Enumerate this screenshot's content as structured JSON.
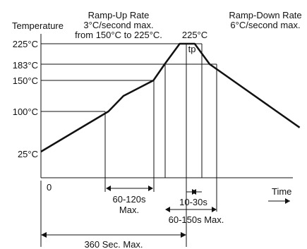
{
  "chart_data": {
    "type": "line",
    "title": "",
    "ylabel": "Temperature",
    "xlabel": "Time",
    "x_origin_label": "0",
    "y_ticks": [
      {
        "value": 25,
        "label": "25°C"
      },
      {
        "value": 100,
        "label": "100°C"
      },
      {
        "value": 150,
        "label": "150°C"
      },
      {
        "value": 183,
        "label": "183°C"
      },
      {
        "value": 225,
        "label": "225°C"
      }
    ],
    "series": [
      {
        "points": [
          [
            0,
            25
          ],
          [
            90,
            100
          ],
          [
            110,
            125
          ],
          [
            150,
            150
          ],
          [
            165,
            183
          ],
          [
            185,
            225
          ],
          [
            205,
            225
          ],
          [
            225,
            183
          ],
          [
            345,
            70
          ]
        ]
      }
    ],
    "annotations": {
      "ramp_up": [
        "Ramp-Up Rate",
        "3°C/second max.",
        "from 150°C to 225°C."
      ],
      "ramp_down": [
        "Ramp-Down Rate",
        "6°C/second max."
      ],
      "peak_label": "225°C",
      "tp_label": "tp",
      "spans": [
        {
          "label": [
            "60-120s",
            "Max."
          ],
          "from": 90,
          "to": 150
        },
        {
          "label": [
            "10-30s"
          ],
          "from": 193,
          "to": 205
        },
        {
          "label": [
            "60-150s Max."
          ],
          "from": 165,
          "to": 225
        },
        {
          "label": [
            "360 Sec. Max."
          ],
          "from": 0,
          "to": 193
        }
      ]
    },
    "colors": {
      "line": "#111111",
      "grid": "#111111"
    }
  }
}
